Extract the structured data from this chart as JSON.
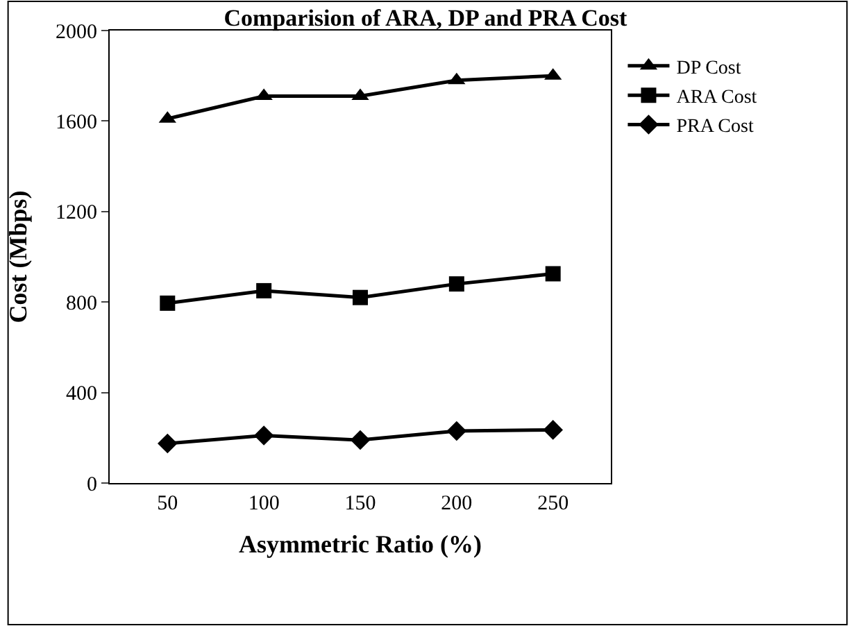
{
  "chart_data": {
    "type": "line",
    "title": "Comparision of ARA, DP and PRA Cost",
    "xlabel": "Asymmetric Ratio (%)",
    "ylabel": "Cost (Mbps)",
    "categories": [
      "50",
      "100",
      "150",
      "200",
      "250"
    ],
    "series": [
      {
        "name": "DP Cost",
        "color": "#000000",
        "marker": "triangle",
        "values": [
          1610,
          1710,
          1710,
          1780,
          1800
        ]
      },
      {
        "name": "ARA Cost",
        "color": "#000000",
        "marker": "square",
        "values": [
          795,
          850,
          820,
          880,
          925
        ]
      },
      {
        "name": "PRA Cost",
        "color": "#000000",
        "marker": "diamond",
        "values": [
          175,
          210,
          190,
          230,
          235
        ]
      }
    ],
    "ylim": [
      0,
      2000
    ],
    "yticks": [
      0,
      400,
      800,
      1200,
      1600,
      2000
    ],
    "legend": "right",
    "line_style": "solid"
  }
}
